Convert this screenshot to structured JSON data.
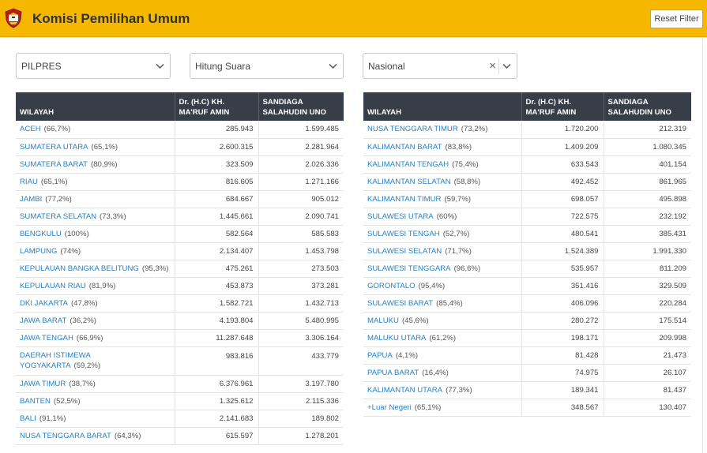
{
  "app": {
    "title": "Komisi Pemilihan Umum",
    "reset_label": "Reset Filter",
    "brand_color": "#f5b700"
  },
  "filters": {
    "election": "PILPRES",
    "mode": "Hitung Suara",
    "scope": "Nasional"
  },
  "columns": {
    "wilayah": "WILAYAH",
    "candidate1": "Dr. (H.C) KH. MA'RUF AMIN",
    "candidate2": "SANDIAGA SALAHUDIN UNO"
  },
  "left_rows": [
    {
      "region": "ACEH",
      "pct": "(66,7%)",
      "c1": "285.943",
      "c2": "1.599.485"
    },
    {
      "region": "SUMATERA UTARA",
      "pct": "(65,1%)",
      "c1": "2.600.315",
      "c2": "2.281.964"
    },
    {
      "region": "SUMATERA BARAT",
      "pct": "(80,9%)",
      "c1": "323.509",
      "c2": "2.026.336"
    },
    {
      "region": "RIAU",
      "pct": "(65,1%)",
      "c1": "816.605",
      "c2": "1.271.166"
    },
    {
      "region": "JAMBI",
      "pct": "(77,2%)",
      "c1": "684.667",
      "c2": "905.012"
    },
    {
      "region": "SUMATERA SELATAN",
      "pct": "(73,3%)",
      "c1": "1.445.661",
      "c2": "2.090.741"
    },
    {
      "region": "BENGKULU",
      "pct": "(100%)",
      "c1": "582.564",
      "c2": "585.583"
    },
    {
      "region": "LAMPUNG",
      "pct": "(74%)",
      "c1": "2.134.407",
      "c2": "1.453.798"
    },
    {
      "region": "KEPULAUAN BANGKA BELITUNG",
      "pct": "(95,3%)",
      "c1": "475.261",
      "c2": "273.503"
    },
    {
      "region": "KEPULAUAN RIAU",
      "pct": "(81,9%)",
      "c1": "453.873",
      "c2": "373.281"
    },
    {
      "region": "DKI JAKARTA",
      "pct": "(47,8%)",
      "c1": "1.582.721",
      "c2": "1.432.713"
    },
    {
      "region": "JAWA BARAT",
      "pct": "(36,2%)",
      "c1": "4.193.804",
      "c2": "5.480.995"
    },
    {
      "region": "JAWA TENGAH",
      "pct": "(66,9%)",
      "c1": "11.287.648",
      "c2": "3.306.164"
    },
    {
      "region": "DAERAH ISTIMEWA YOGYAKARTA",
      "pct": "(59,2%)",
      "c1": "983.816",
      "c2": "433.779",
      "tall": true
    },
    {
      "region": "JAWA TIMUR",
      "pct": "(38,7%)",
      "c1": "6.376.961",
      "c2": "3.197.780"
    },
    {
      "region": "BANTEN",
      "pct": "(52,5%)",
      "c1": "1.325.612",
      "c2": "2.115.336"
    },
    {
      "region": "BALI",
      "pct": "(91,1%)",
      "c1": "2.141.683",
      "c2": "189.802"
    },
    {
      "region": "NUSA TENGGARA BARAT",
      "pct": "(64,3%)",
      "c1": "615.597",
      "c2": "1.278.201"
    }
  ],
  "right_rows": [
    {
      "region": "NUSA TENGGARA TIMUR",
      "pct": "(73,2%)",
      "c1": "1.720.200",
      "c2": "212.319"
    },
    {
      "region": "KALIMANTAN BARAT",
      "pct": "(83,8%)",
      "c1": "1.409.209",
      "c2": "1.080.345"
    },
    {
      "region": "KALIMANTAN TENGAH",
      "pct": "(75,4%)",
      "c1": "633.543",
      "c2": "401.154"
    },
    {
      "region": "KALIMANTAN SELATAN",
      "pct": "(58,8%)",
      "c1": "492.452",
      "c2": "861.965"
    },
    {
      "region": "KALIMANTAN TIMUR",
      "pct": "(59,7%)",
      "c1": "698.057",
      "c2": "495.898"
    },
    {
      "region": "SULAWESI UTARA",
      "pct": "(60%)",
      "c1": "722.575",
      "c2": "232.192"
    },
    {
      "region": "SULAWESI TENGAH",
      "pct": "(52,7%)",
      "c1": "480.541",
      "c2": "385.431"
    },
    {
      "region": "SULAWESI SELATAN",
      "pct": "(71,7%)",
      "c1": "1.524.389",
      "c2": "1.991.330"
    },
    {
      "region": "SULAWESI TENGGARA",
      "pct": "(96,6%)",
      "c1": "535.957",
      "c2": "811.209"
    },
    {
      "region": "GORONTALO",
      "pct": "(95,4%)",
      "c1": "351.416",
      "c2": "329.509"
    },
    {
      "region": "SULAWESI BARAT",
      "pct": "(85,4%)",
      "c1": "406.096",
      "c2": "220.284"
    },
    {
      "region": "MALUKU",
      "pct": "(45,6%)",
      "c1": "280.272",
      "c2": "175.514"
    },
    {
      "region": "MALUKU UTARA",
      "pct": "(61,2%)",
      "c1": "198.171",
      "c2": "209.998"
    },
    {
      "region": "PAPUA",
      "pct": "(4,1%)",
      "c1": "81.428",
      "c2": "21.473"
    },
    {
      "region": "PAPUA BARAT",
      "pct": "(16,4%)",
      "c1": "74.975",
      "c2": "26.107"
    },
    {
      "region": "KALIMANTAN UTARA",
      "pct": "(77,3%)",
      "c1": "189.341",
      "c2": "81.437"
    },
    {
      "region": "+Luar Negeri",
      "pct": "(65,1%)",
      "c1": "348.567",
      "c2": "130.407"
    }
  ]
}
